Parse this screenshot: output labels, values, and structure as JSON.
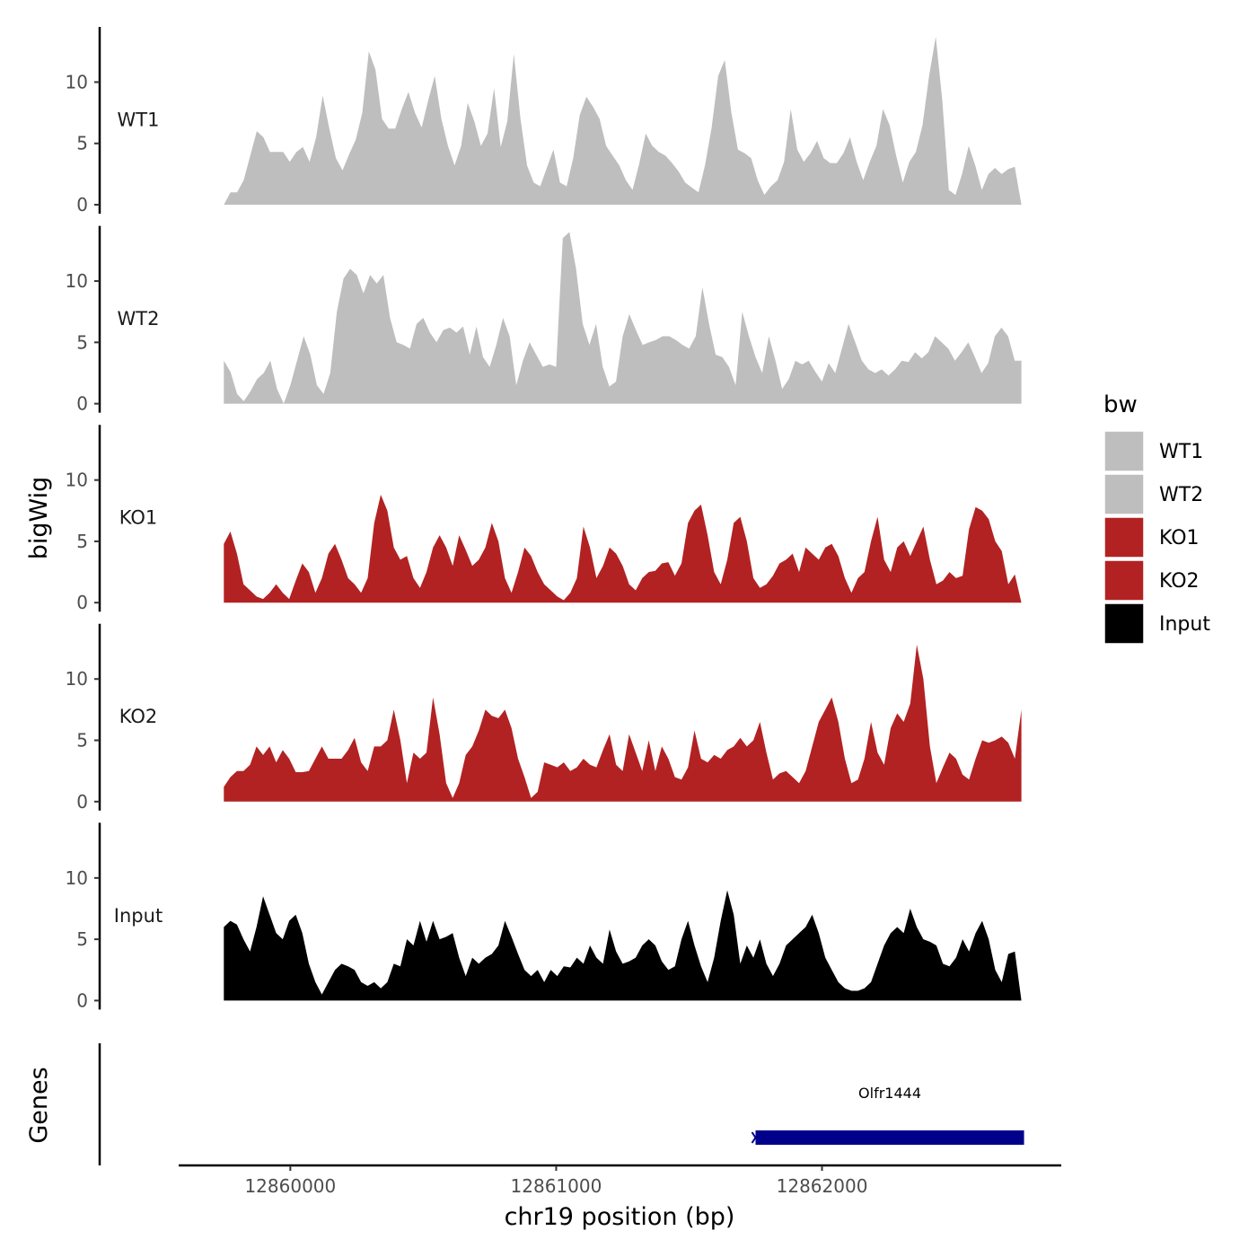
{
  "chart_data": {
    "type": "area",
    "ylabel": "bigWig",
    "xlabel": "chr19 position (bp)",
    "x_range": [
      12859750,
      12862750
    ],
    "x_axis_limits": [
      12859580,
      12862900
    ],
    "x_ticks": [
      12860000,
      12861000,
      12862000
    ],
    "x_tick_labels": [
      "12860000",
      "12861000",
      "12862000"
    ],
    "y_range": [
      0,
      14.5
    ],
    "y_ticks": [
      0,
      5,
      10
    ],
    "y_tick_labels": [
      "0",
      "5",
      "10"
    ],
    "tracks": [
      {
        "name": "WT1",
        "color": "#bebebe",
        "values": [
          0,
          1,
          1,
          2,
          4,
          6,
          5.5,
          4.3,
          4.3,
          4.3,
          3.5,
          4.3,
          4.7,
          3.5,
          5.5,
          8.9,
          6.2,
          3.8,
          2.8,
          4.1,
          5.3,
          7.5,
          12.5,
          11,
          7,
          6.2,
          6.2,
          7.8,
          9.2,
          7.5,
          6.3,
          8.5,
          10.5,
          7,
          4.8,
          3.2,
          4.8,
          8.3,
          6.8,
          4.8,
          5.8,
          9.5,
          4.7,
          6.8,
          12.3,
          7,
          3.2,
          1.8,
          1.5,
          3,
          4.5,
          1.8,
          1.5,
          3.8,
          7.3,
          8.8,
          8,
          7,
          4.8,
          4,
          3.2,
          2,
          1.2,
          3.3,
          5.8,
          4.8,
          4.3,
          4,
          3.4,
          2.7,
          1.8,
          1.4,
          1,
          3.2,
          6.3,
          10.5,
          11.8,
          7.5,
          4.5,
          4.2,
          3.8,
          2,
          0.8,
          1.5,
          2,
          3.5,
          7.8,
          4.5,
          3.5,
          4.2,
          5.2,
          3.8,
          3.4,
          3.4,
          4.2,
          5.5,
          3.5,
          2,
          3.5,
          4.8,
          7.8,
          6.5,
          4,
          1.8,
          3.5,
          4.3,
          6.5,
          10.5,
          13.7,
          8.5,
          1.2,
          0.8,
          2.5,
          4.8,
          3.2,
          1.2,
          2.5,
          3,
          2.5,
          2.9,
          3.1,
          0
        ]
      },
      {
        "name": "WT2",
        "color": "#bebebe",
        "values": [
          3.5,
          2.6,
          0.8,
          0.2,
          1,
          2,
          2.5,
          3.5,
          1.2,
          0,
          1.5,
          3.5,
          5.5,
          4,
          1.5,
          0.8,
          2.5,
          7.5,
          10.2,
          11,
          10.5,
          9,
          10.5,
          9.8,
          10.5,
          7,
          5,
          4.8,
          4.5,
          6.5,
          7,
          5.8,
          5,
          6,
          6.2,
          5.8,
          6.3,
          4,
          6.3,
          3.8,
          3,
          4.8,
          7,
          5.5,
          1.5,
          3.5,
          5,
          4,
          3,
          3.2,
          3,
          13.5,
          14,
          11,
          6.5,
          4.8,
          6.5,
          3,
          1.4,
          1.8,
          5.5,
          7.3,
          6,
          4.8,
          5,
          5.2,
          5.5,
          5.5,
          5.2,
          4.8,
          4.5,
          5.5,
          9.5,
          6.5,
          4,
          3.8,
          3,
          1.5,
          7.5,
          5.5,
          3.8,
          2.5,
          5.5,
          3.5,
          1.2,
          2,
          3.5,
          3.2,
          3.5,
          2.6,
          1.8,
          3.3,
          2.5,
          4.5,
          6.5,
          5,
          3.5,
          2.8,
          2.5,
          2.8,
          2.3,
          2.8,
          3.5,
          3.4,
          4.2,
          3.7,
          4.2,
          5.5,
          5,
          4.5,
          3.5,
          4.2,
          5,
          3.8,
          2.5,
          3.3,
          5.5,
          6.2,
          5.5,
          3.5,
          3.5
        ]
      },
      {
        "name": "KO1",
        "color": "#b22222",
        "values": [
          4.8,
          5.8,
          4,
          1.5,
          1,
          0.5,
          0.3,
          0.8,
          1.5,
          0.8,
          0.3,
          1.8,
          3.2,
          2.5,
          0.8,
          2,
          4,
          4.8,
          3.5,
          2,
          1.5,
          0.8,
          2,
          6.5,
          8.8,
          7.5,
          4.5,
          3.5,
          3.8,
          2,
          1.2,
          2.5,
          4.5,
          5.5,
          4.5,
          3,
          5.5,
          4.3,
          3,
          3.5,
          4.5,
          6.5,
          5,
          2,
          0.8,
          2.5,
          4.5,
          3.8,
          2.5,
          1.5,
          1,
          0.5,
          0.2,
          0.8,
          2,
          6.2,
          4.5,
          2,
          3,
          4.5,
          4,
          3,
          1.5,
          1,
          2,
          2.5,
          2.6,
          3.2,
          3.3,
          2.2,
          3.2,
          6.5,
          7.5,
          8,
          5.5,
          2.5,
          1.5,
          3.5,
          6.5,
          7,
          5,
          2,
          1.2,
          1.5,
          2.2,
          3.2,
          3.5,
          4,
          2.5,
          4.5,
          4,
          3.5,
          4.5,
          4.8,
          3.8,
          2,
          0.8,
          2,
          2.5,
          5,
          7,
          3.5,
          2.5,
          4.5,
          5,
          3.8,
          5,
          6.2,
          3.5,
          1.5,
          1.8,
          2.5,
          2,
          2.2,
          6,
          7.8,
          7.5,
          6.8,
          5,
          4.2,
          1.5,
          2.3,
          0
        ]
      },
      {
        "name": "KO2",
        "color": "#b22222",
        "values": [
          1.2,
          2,
          2.5,
          2.5,
          3,
          4.5,
          3.8,
          4.5,
          3.2,
          4.2,
          3.5,
          2.4,
          2.4,
          2.5,
          3.5,
          4.5,
          3.5,
          3.5,
          3.5,
          4.2,
          5.2,
          3.2,
          2.5,
          4.5,
          4.5,
          5,
          7.5,
          5,
          1.5,
          4,
          3.5,
          4,
          8.5,
          5.5,
          1.5,
          0.3,
          1.5,
          3.8,
          4.5,
          5.8,
          7.5,
          7,
          6.8,
          7.5,
          6,
          3.5,
          2,
          0.3,
          0.8,
          3.2,
          3,
          2.8,
          3.2,
          2.5,
          2.8,
          3.5,
          3,
          2.8,
          4.2,
          5.5,
          3,
          2.5,
          5.5,
          4,
          2.5,
          5,
          2.5,
          4.5,
          3.5,
          2,
          1.8,
          2.8,
          5.8,
          3.5,
          3.2,
          3.8,
          3.5,
          4.2,
          4.5,
          5.2,
          4.5,
          5,
          6.5,
          4,
          1.8,
          2.3,
          2.5,
          2,
          1.5,
          2.5,
          4.5,
          6.5,
          7.5,
          8.5,
          6.5,
          3.5,
          1.5,
          1.8,
          3.5,
          6.5,
          4,
          3,
          6,
          7.2,
          6.5,
          8,
          12.8,
          10,
          4.5,
          1.5,
          2.8,
          4,
          3.5,
          2.2,
          1.8,
          3.5,
          5,
          4.8,
          5,
          5.3,
          4.8,
          3.5,
          7.5
        ]
      },
      {
        "name": "Input",
        "color": "#000000",
        "values": [
          6,
          6.5,
          6.2,
          5,
          4,
          6,
          8.5,
          7,
          5.5,
          5,
          6.5,
          7,
          5.5,
          3,
          1.5,
          0.5,
          1.5,
          2.5,
          3,
          2.8,
          2.5,
          1.5,
          1.2,
          1.5,
          1,
          1.5,
          3,
          2.8,
          5,
          4.5,
          6.5,
          4.8,
          6.5,
          5,
          5.2,
          5.5,
          3.5,
          2,
          3.5,
          3,
          3.5,
          3.8,
          4.5,
          6.5,
          5.2,
          3.8,
          2.5,
          2,
          2.5,
          1.5,
          2.5,
          2,
          2.8,
          2.7,
          3.5,
          3,
          4.5,
          3.5,
          3,
          5.8,
          4,
          3,
          3.2,
          3.5,
          4.5,
          5,
          4.5,
          3.2,
          2.5,
          2.8,
          5,
          6.5,
          4.5,
          2.8,
          1.5,
          3.5,
          6.5,
          9,
          7,
          3,
          4.5,
          3.5,
          5,
          3,
          2,
          3,
          4.5,
          5,
          5.5,
          6,
          7,
          5.5,
          3.5,
          2.5,
          1.5,
          1,
          0.8,
          0.8,
          1,
          1.5,
          3,
          4.5,
          5.5,
          6,
          5.5,
          7.5,
          6,
          5,
          4.8,
          4.5,
          3,
          2.8,
          3.5,
          5,
          4,
          5.5,
          6.5,
          5,
          2.5,
          1.5,
          3.8,
          4,
          0
        ]
      }
    ],
    "genes": [
      {
        "name": "Olfr1444",
        "start": 12861750,
        "end": 12862760,
        "strand": "-",
        "color": "#00008b"
      }
    ],
    "gene_track_label": "Genes",
    "legend": {
      "title": "bw",
      "entries": [
        "WT1",
        "WT2",
        "KO1",
        "KO2",
        "Input"
      ],
      "colors": [
        "#bebebe",
        "#bebebe",
        "#b22222",
        "#b22222",
        "#000000"
      ],
      "position": "right"
    }
  }
}
